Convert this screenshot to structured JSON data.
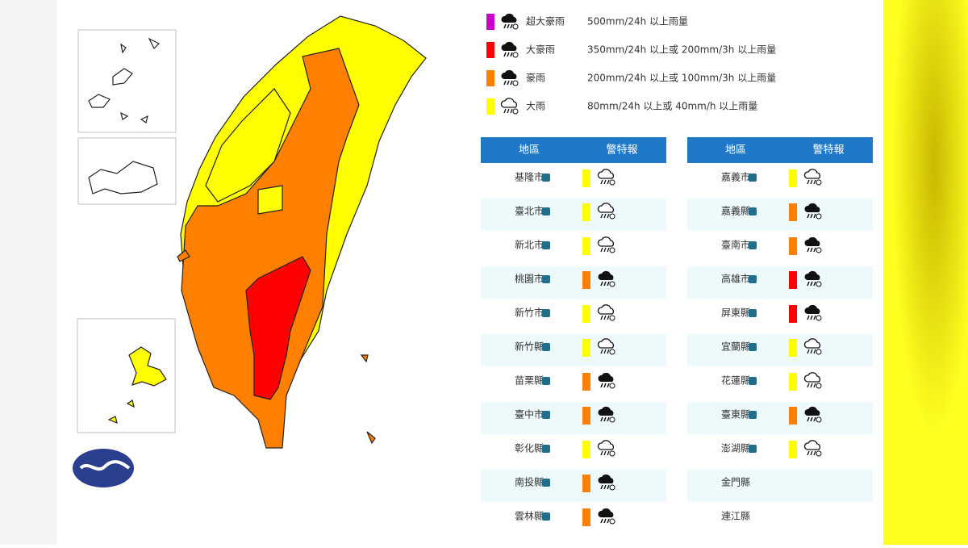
{
  "legend": [
    {
      "color": "#cc00cc",
      "icon_filled": true,
      "label": "超大豪雨",
      "description": "500mm/24h 以上雨量"
    },
    {
      "color": "#ff0000",
      "icon_filled": true,
      "label": "大豪雨",
      "description": "350mm/24h 以上或 200mm/3h 以上雨量"
    },
    {
      "color": "#ff8000",
      "icon_filled": true,
      "label": "豪雨",
      "description": "200mm/24h 以上或 100mm/3h 以上雨量"
    },
    {
      "color": "#ffff00",
      "icon_filled": false,
      "label": "大雨",
      "description": "80mm/24h 以上或 40mm/h 以上雨量"
    }
  ],
  "tables": [
    {
      "headers": [
        "地區",
        "警特報"
      ],
      "rows": [
        {
          "region": "基隆市",
          "color": "#ffff00"
        },
        {
          "region": "臺北市",
          "color": "#ffff00"
        },
        {
          "region": "新北市",
          "color": "#ffff00"
        },
        {
          "region": "桃園市",
          "color": "#ff8000"
        },
        {
          "region": "新竹市",
          "color": "#ffff00"
        },
        {
          "region": "新竹縣",
          "color": "#ffff00"
        },
        {
          "region": "苗栗縣",
          "color": "#ff8000"
        },
        {
          "region": "臺中市",
          "color": "#ff8000"
        },
        {
          "region": "彰化縣",
          "color": "#ffff00"
        },
        {
          "region": "南投縣",
          "color": "#ff8000"
        },
        {
          "region": "雲林縣",
          "color": "#ff8000"
        }
      ]
    },
    {
      "headers": [
        "地區",
        "警特報"
      ],
      "rows": [
        {
          "region": "嘉義市",
          "color": "#ffff00"
        },
        {
          "region": "嘉義縣",
          "color": "#ff8000"
        },
        {
          "region": "臺南市",
          "color": "#ff8000"
        },
        {
          "region": "高雄市",
          "color": "#ff0000"
        },
        {
          "region": "屏東縣",
          "color": "#ff0000"
        },
        {
          "region": "宜蘭縣",
          "color": "#ffff00"
        },
        {
          "region": "花蓮縣",
          "color": "#ffff00"
        },
        {
          "region": "臺東縣",
          "color": "#ff8000"
        },
        {
          "region": "澎湖縣",
          "color": "#ffff00"
        },
        {
          "region": "金門縣",
          "color": null
        },
        {
          "region": "連江縣",
          "color": null
        }
      ]
    }
  ]
}
